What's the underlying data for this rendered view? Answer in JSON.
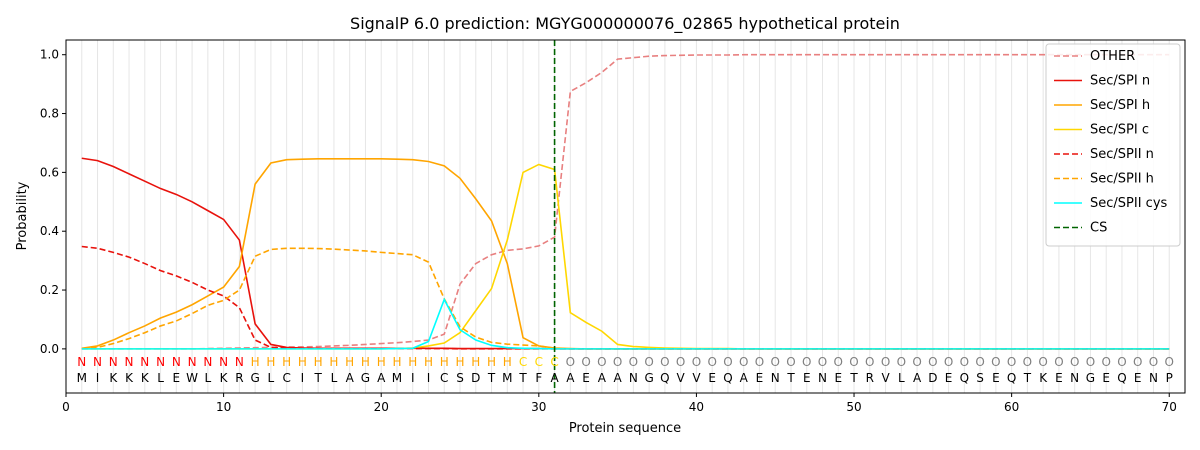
{
  "chart_data": {
    "type": "line",
    "title": "SignalP 6.0 prediction: MGYG000000076_02865 hypothetical protein",
    "xlabel": "Protein sequence",
    "ylabel": "Probability",
    "xlim": [
      0,
      71
    ],
    "ylim": [
      -0.15,
      1.05
    ],
    "xticks": [
      0,
      10,
      20,
      30,
      40,
      50,
      60,
      70
    ],
    "yticks": [
      0.0,
      0.2,
      0.4,
      0.6,
      0.8,
      1.0
    ],
    "xtick_labels": [
      "0",
      "10",
      "20",
      "30",
      "40",
      "50",
      "60",
      "70"
    ],
    "ytick_labels": [
      "0.0",
      "0.2",
      "0.4",
      "0.6",
      "0.8",
      "1.0"
    ],
    "grid": "vertical lines at each residue",
    "legend_position": "top-right",
    "sequence": [
      "M",
      "I",
      "K",
      "K",
      "K",
      "L",
      "E",
      "W",
      "L",
      "K",
      "R",
      "G",
      "L",
      "C",
      "I",
      "T",
      "L",
      "A",
      "G",
      "A",
      "M",
      "I",
      "I",
      "C",
      "S",
      "D",
      "T",
      "M",
      "T",
      "F",
      "A",
      "A",
      "E",
      "A",
      "A",
      "N",
      "G",
      "Q",
      "V",
      "V",
      "E",
      "Q",
      "A",
      "E",
      "N",
      "T",
      "E",
      "N",
      "E",
      "T",
      "R",
      "V",
      "L",
      "A",
      "D",
      "E",
      "Q",
      "S",
      "E",
      "Q",
      "T",
      "K",
      "E",
      "N",
      "G",
      "E",
      "Q",
      "E",
      "N",
      "P"
    ],
    "region_labels": [
      "N",
      "N",
      "N",
      "N",
      "N",
      "N",
      "N",
      "N",
      "N",
      "N",
      "N",
      "H",
      "H",
      "H",
      "H",
      "H",
      "H",
      "H",
      "H",
      "H",
      "H",
      "H",
      "H",
      "H",
      "H",
      "H",
      "H",
      "H",
      "C",
      "C",
      "C",
      "O",
      "O",
      "O",
      "O",
      "O",
      "O",
      "O",
      "O",
      "O",
      "O",
      "O",
      "O",
      "O",
      "O",
      "O",
      "O",
      "O",
      "O",
      "O",
      "O",
      "O",
      "O",
      "O",
      "O",
      "O",
      "O",
      "O",
      "O",
      "O",
      "O",
      "O",
      "O",
      "O",
      "O",
      "O",
      "O",
      "O",
      "O",
      "O"
    ],
    "region_colors": {
      "N": "#ff0000",
      "H": "#ffa500",
      "C": "#ffd700",
      "O": "#808080"
    },
    "cs_position": 31,
    "series": [
      {
        "name": "OTHER",
        "color": "#e88080",
        "dash": "dashed",
        "values": [
          0.0,
          0.0,
          0.0,
          0.0,
          0.0,
          0.0,
          0.0,
          0.0,
          0.001,
          0.002,
          0.003,
          0.004,
          0.005,
          0.006,
          0.007,
          0.008,
          0.01,
          0.012,
          0.015,
          0.018,
          0.021,
          0.025,
          0.03,
          0.05,
          0.22,
          0.29,
          0.32,
          0.335,
          0.34,
          0.35,
          0.38,
          0.875,
          0.905,
          0.94,
          0.985,
          0.99,
          0.995,
          0.997,
          0.998,
          0.999,
          0.999,
          0.999,
          1.0,
          1.0,
          1.0,
          1.0,
          1.0,
          1.0,
          1.0,
          1.0,
          1.0,
          1.0,
          1.0,
          1.0,
          1.0,
          1.0,
          1.0,
          1.0,
          1.0,
          1.0,
          1.0,
          1.0,
          1.0,
          1.0,
          1.0,
          1.0,
          1.0,
          1.0,
          1.0,
          1.0
        ]
      },
      {
        "name": "Sec/SPI n",
        "color": "#e8120c",
        "dash": "solid",
        "values": [
          0.648,
          0.64,
          0.62,
          0.595,
          0.57,
          0.545,
          0.525,
          0.5,
          0.47,
          0.44,
          0.37,
          0.085,
          0.015,
          0.005,
          0.003,
          0.002,
          0.002,
          0.002,
          0.002,
          0.002,
          0.002,
          0.002,
          0.002,
          0.002,
          0.001,
          0.001,
          0.001,
          0.001,
          0.001,
          0.001,
          0.0,
          0.0,
          0.0,
          0.0,
          0.0,
          0.0,
          0.0,
          0.0,
          0.0,
          0.0,
          0.0,
          0.0,
          0.0,
          0.0,
          0.0,
          0.0,
          0.0,
          0.0,
          0.0,
          0.0,
          0.0,
          0.0,
          0.0,
          0.0,
          0.0,
          0.0,
          0.0,
          0.0,
          0.0,
          0.0,
          0.0,
          0.0,
          0.0,
          0.0,
          0.0,
          0.0,
          0.0,
          0.0,
          0.0,
          0.0
        ]
      },
      {
        "name": "Sec/SPI h",
        "color": "#ffa500",
        "dash": "solid",
        "values": [
          0.002,
          0.01,
          0.03,
          0.055,
          0.078,
          0.105,
          0.125,
          0.15,
          0.18,
          0.21,
          0.28,
          0.56,
          0.632,
          0.643,
          0.645,
          0.646,
          0.646,
          0.646,
          0.646,
          0.646,
          0.645,
          0.643,
          0.637,
          0.622,
          0.58,
          0.51,
          0.435,
          0.29,
          0.038,
          0.01,
          0.003,
          0.001,
          0.0,
          0.0,
          0.0,
          0.0,
          0.0,
          0.0,
          0.0,
          0.0,
          0.0,
          0.0,
          0.0,
          0.0,
          0.0,
          0.0,
          0.0,
          0.0,
          0.0,
          0.0,
          0.0,
          0.0,
          0.0,
          0.0,
          0.0,
          0.0,
          0.0,
          0.0,
          0.0,
          0.0,
          0.0,
          0.0,
          0.0,
          0.0,
          0.0,
          0.0,
          0.0,
          0.0,
          0.0,
          0.0
        ]
      },
      {
        "name": "Sec/SPI c",
        "color": "#ffd700",
        "dash": "solid",
        "values": [
          0.0,
          0.0,
          0.0,
          0.0,
          0.0,
          0.0,
          0.0,
          0.0,
          0.0,
          0.0,
          0.0,
          0.0,
          0.0,
          0.0,
          0.0,
          0.0,
          0.0,
          0.0,
          0.0,
          0.0,
          0.001,
          0.003,
          0.01,
          0.02,
          0.055,
          0.13,
          0.205,
          0.37,
          0.6,
          0.627,
          0.61,
          0.123,
          0.09,
          0.06,
          0.015,
          0.008,
          0.005,
          0.003,
          0.002,
          0.001,
          0.001,
          0.001,
          0.0,
          0.0,
          0.0,
          0.0,
          0.0,
          0.0,
          0.0,
          0.0,
          0.0,
          0.0,
          0.0,
          0.0,
          0.0,
          0.0,
          0.0,
          0.0,
          0.0,
          0.0,
          0.0,
          0.0,
          0.0,
          0.0,
          0.0,
          0.0,
          0.0,
          0.0,
          0.0,
          0.0
        ]
      },
      {
        "name": "Sec/SPII n",
        "color": "#e8120c",
        "dash": "dashed",
        "values": [
          0.348,
          0.342,
          0.328,
          0.312,
          0.29,
          0.266,
          0.248,
          0.226,
          0.2,
          0.18,
          0.14,
          0.03,
          0.005,
          0.002,
          0.001,
          0.001,
          0.001,
          0.001,
          0.001,
          0.001,
          0.001,
          0.001,
          0.001,
          0.001,
          0.0,
          0.0,
          0.0,
          0.0,
          0.0,
          0.0,
          0.0,
          0.0,
          0.0,
          0.0,
          0.0,
          0.0,
          0.0,
          0.0,
          0.0,
          0.0,
          0.0,
          0.0,
          0.0,
          0.0,
          0.0,
          0.0,
          0.0,
          0.0,
          0.0,
          0.0,
          0.0,
          0.0,
          0.0,
          0.0,
          0.0,
          0.0,
          0.0,
          0.0,
          0.0,
          0.0,
          0.0,
          0.0,
          0.0,
          0.0,
          0.0,
          0.0,
          0.0,
          0.0,
          0.0,
          0.0
        ]
      },
      {
        "name": "Sec/SPII h",
        "color": "#ffa500",
        "dash": "dashed",
        "values": [
          0.001,
          0.005,
          0.018,
          0.035,
          0.055,
          0.078,
          0.095,
          0.12,
          0.148,
          0.165,
          0.2,
          0.315,
          0.338,
          0.342,
          0.342,
          0.341,
          0.339,
          0.336,
          0.333,
          0.328,
          0.324,
          0.32,
          0.295,
          0.17,
          0.075,
          0.04,
          0.022,
          0.016,
          0.013,
          0.01,
          0.002,
          0.0,
          0.0,
          0.0,
          0.0,
          0.0,
          0.0,
          0.0,
          0.0,
          0.0,
          0.0,
          0.0,
          0.0,
          0.0,
          0.0,
          0.0,
          0.0,
          0.0,
          0.0,
          0.0,
          0.0,
          0.0,
          0.0,
          0.0,
          0.0,
          0.0,
          0.0,
          0.0,
          0.0,
          0.0,
          0.0,
          0.0,
          0.0,
          0.0,
          0.0,
          0.0,
          0.0,
          0.0,
          0.0,
          0.0
        ]
      },
      {
        "name": "Sec/SPII cys",
        "color": "#00ffff",
        "dash": "solid",
        "values": [
          0.0,
          0.0,
          0.0,
          0.0,
          0.0,
          0.0,
          0.0,
          0.0,
          0.0,
          0.0,
          0.0,
          0.0,
          0.0,
          0.0,
          0.0,
          0.0,
          0.0,
          0.0,
          0.0,
          0.0,
          0.001,
          0.002,
          0.025,
          0.168,
          0.065,
          0.03,
          0.012,
          0.004,
          0.002,
          0.001,
          0.0,
          0.0,
          0.0,
          0.0,
          0.0,
          0.0,
          0.0,
          0.0,
          0.0,
          0.0,
          0.0,
          0.0,
          0.0,
          0.0,
          0.0,
          0.0,
          0.0,
          0.0,
          0.0,
          0.0,
          0.0,
          0.0,
          0.0,
          0.0,
          0.0,
          0.0,
          0.0,
          0.0,
          0.0,
          0.0,
          0.0,
          0.0,
          0.0,
          0.0,
          0.0,
          0.0,
          0.0,
          0.0,
          0.0,
          0.0
        ]
      },
      {
        "name": "CS",
        "color": "#006400",
        "dash": "dashed",
        "kind": "vline",
        "x": 31
      }
    ]
  }
}
